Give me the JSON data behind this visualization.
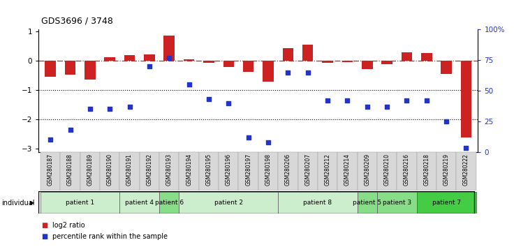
{
  "title": "GDS3696 / 3748",
  "samples": [
    "GSM280187",
    "GSM280188",
    "GSM280189",
    "GSM280190",
    "GSM280191",
    "GSM280192",
    "GSM280193",
    "GSM280194",
    "GSM280195",
    "GSM280196",
    "GSM280197",
    "GSM280198",
    "GSM280206",
    "GSM280207",
    "GSM280212",
    "GSM280214",
    "GSM280209",
    "GSM280210",
    "GSM280216",
    "GSM280218",
    "GSM280219",
    "GSM280222"
  ],
  "log2_ratio": [
    -0.55,
    -0.48,
    -0.65,
    0.12,
    0.18,
    0.22,
    0.85,
    0.04,
    -0.08,
    -0.22,
    -0.38,
    -0.72,
    0.42,
    0.55,
    -0.08,
    -0.04,
    -0.28,
    -0.12,
    0.28,
    0.25,
    -0.45,
    -2.6
  ],
  "percentile": [
    10,
    18,
    35,
    35,
    37,
    70,
    77,
    55,
    43,
    40,
    12,
    8,
    65,
    65,
    42,
    42,
    37,
    37,
    42,
    42,
    25,
    3
  ],
  "patients": [
    {
      "label": "patient 1",
      "start": 0,
      "end": 4,
      "color": "#cceecc"
    },
    {
      "label": "patient 4",
      "start": 4,
      "end": 6,
      "color": "#cceecc"
    },
    {
      "label": "patient 6",
      "start": 6,
      "end": 7,
      "color": "#88dd88"
    },
    {
      "label": "patient 2",
      "start": 7,
      "end": 12,
      "color": "#cceecc"
    },
    {
      "label": "patient 8",
      "start": 12,
      "end": 16,
      "color": "#cceecc"
    },
    {
      "label": "patient 5",
      "start": 16,
      "end": 17,
      "color": "#88dd88"
    },
    {
      "label": "patient 3",
      "start": 17,
      "end": 19,
      "color": "#88dd88"
    },
    {
      "label": "patient 7",
      "start": 19,
      "end": 22,
      "color": "#44cc44"
    }
  ],
  "bar_color": "#cc2222",
  "dot_color": "#2233cc",
  "ylim_left": [
    -3.1,
    1.05
  ],
  "ylim_right": [
    0,
    100
  ],
  "left_ticks": [
    -3,
    -2,
    -1,
    0,
    1
  ],
  "right_ticks": [
    0,
    25,
    50,
    75,
    100
  ],
  "right_tick_labels": [
    "0",
    "25",
    "50",
    "75",
    "100%"
  ],
  "dotted_lines": [
    -1.0,
    -2.0
  ],
  "hline_color": "#cc2222",
  "bg_color": "#ffffff"
}
